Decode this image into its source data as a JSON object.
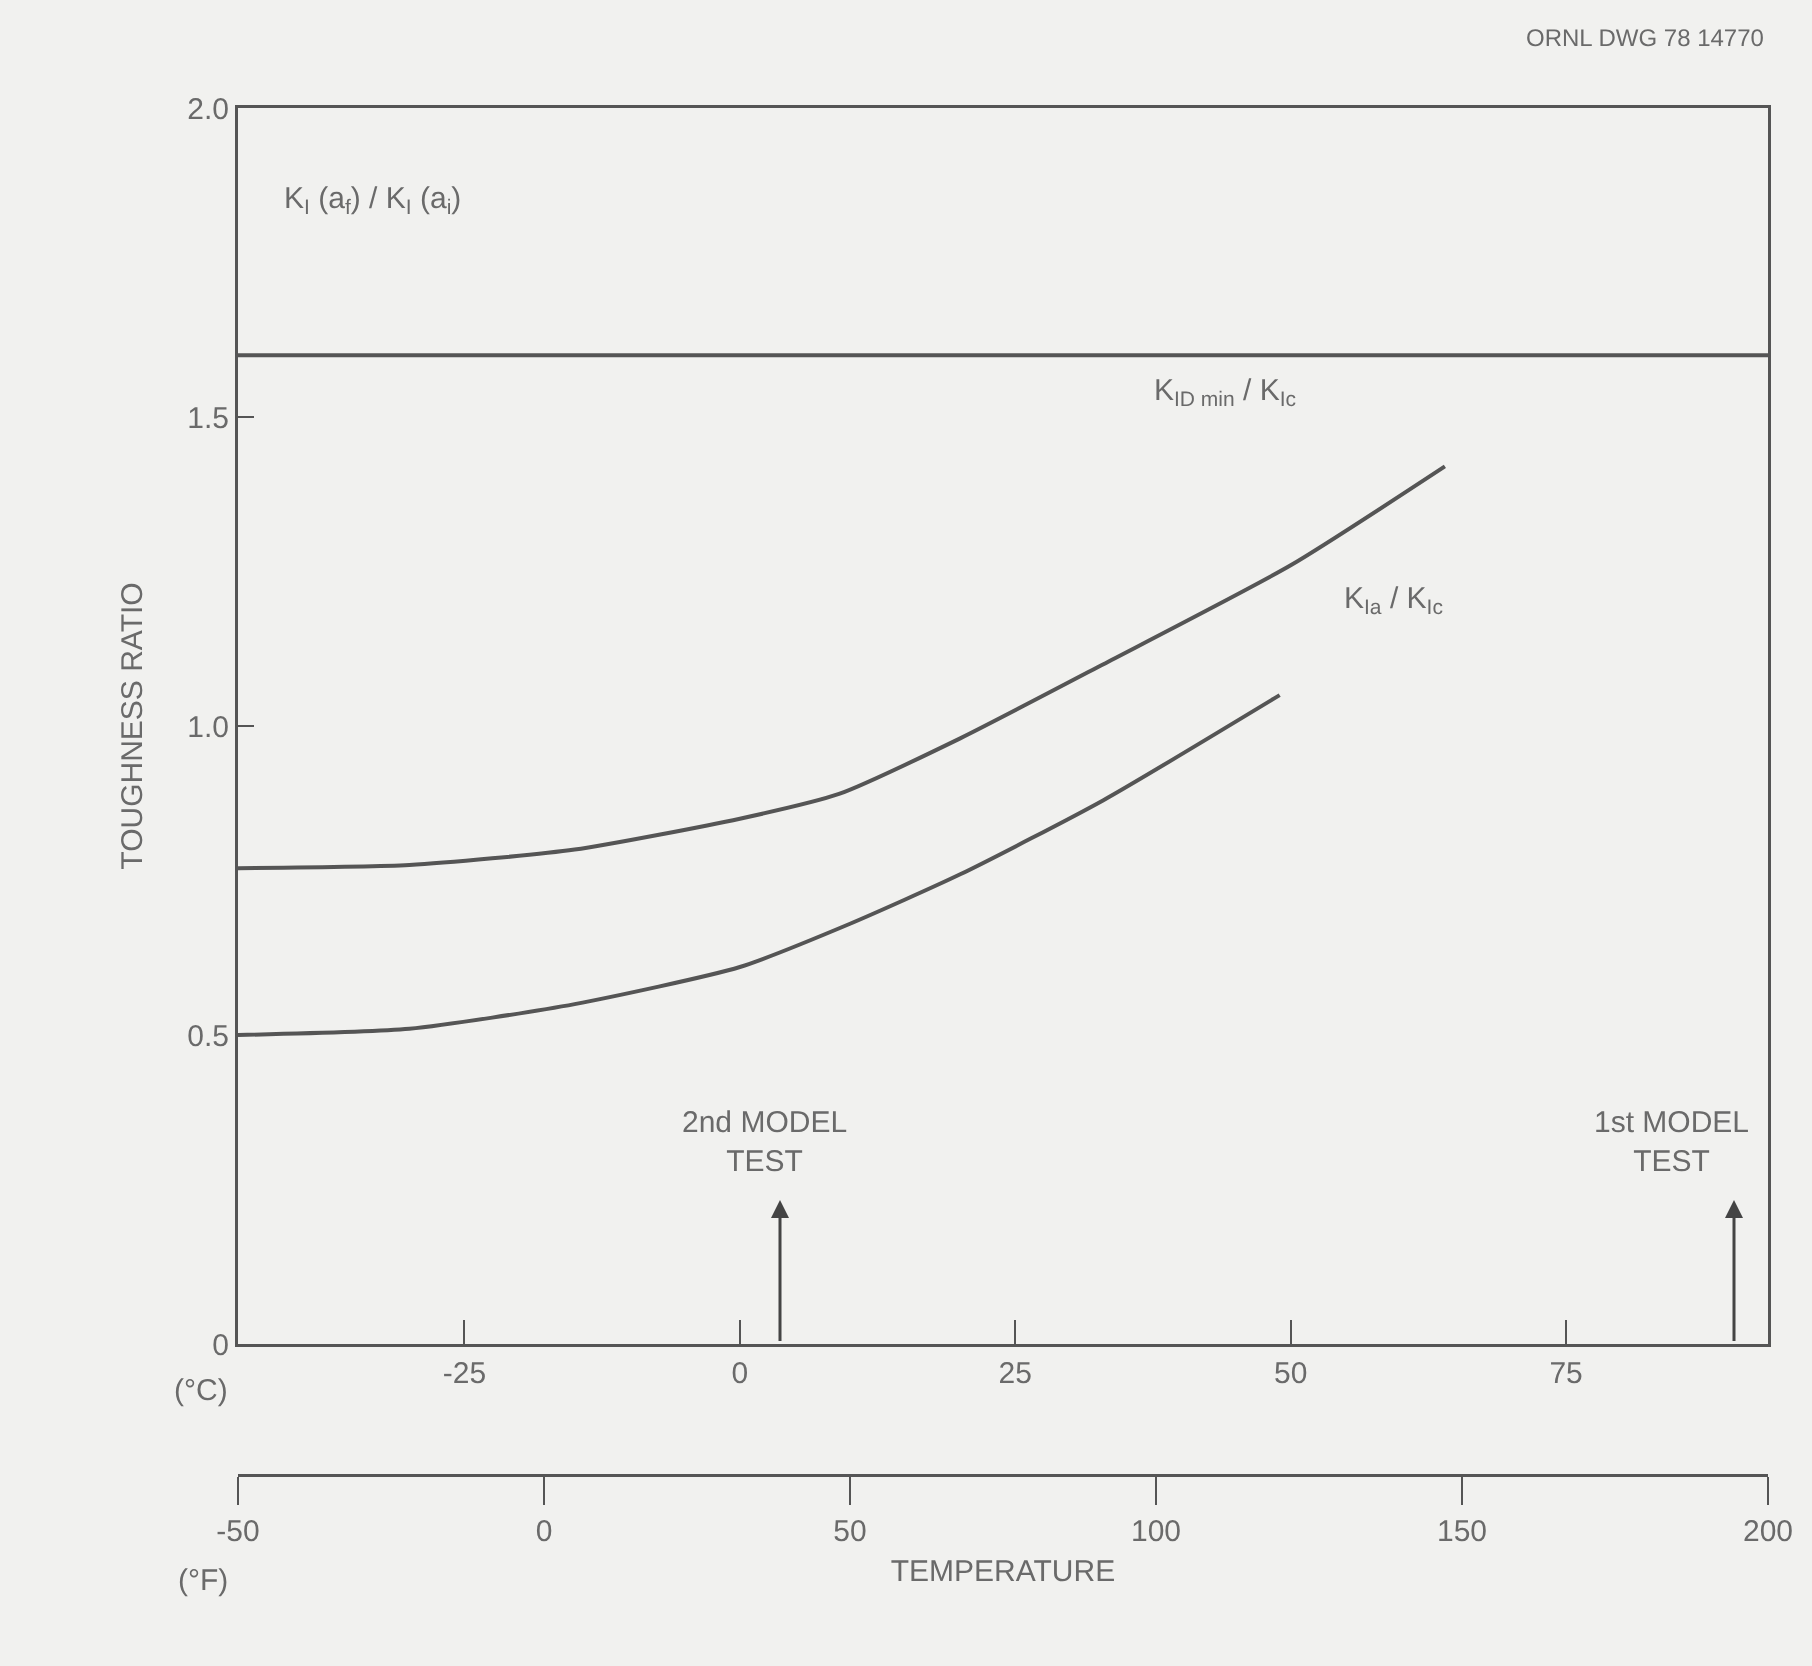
{
  "chart_data": {
    "type": "line",
    "ylabel": "TOUGHNESS RATIO",
    "xlabel": "TEMPERATURE",
    "xlim": [
      -45.56,
      93.33
    ],
    "xticks": [
      -25,
      0,
      25,
      50,
      75
    ],
    "x2lim": [
      -50,
      200
    ],
    "x2ticks": [
      -50,
      0,
      50,
      100,
      150,
      200
    ],
    "ylim": [
      0,
      2
    ],
    "yticks": [
      0,
      {
        "value": 0.5,
        "label": "0.5"
      },
      {
        "value": 1,
        "label": "1.0"
      },
      {
        "value": 1.5,
        "label": "1.5"
      },
      {
        "value": 2,
        "label": "2.0"
      }
    ],
    "grid": false,
    "line_style": "solid",
    "series": [
      {
        "color": "#555555",
        "x": [
          -45.56,
          93.33
        ],
        "values": [
          1.6,
          1.6
        ]
      },
      {
        "color": "#555555",
        "x": [
          -45.56,
          -30,
          -15,
          0,
          9,
          20,
          33,
          50,
          64
        ],
        "values": [
          0.77,
          0.775,
          0.8,
          0.85,
          0.89,
          0.98,
          1.1,
          1.26,
          1.42
        ]
      },
      {
        "color": "#555555",
        "x": [
          -45.56,
          -30,
          -15,
          0,
          10,
          20,
          33,
          49
        ],
        "values": [
          0.5,
          0.51,
          0.55,
          0.61,
          0.68,
          0.76,
          0.88,
          1.05
        ]
      }
    ],
    "annotations": [
      "ORNL DWG 78 14770",
      "(°C)",
      "(°F)",
      "K$_{I}$ (a$_{f}$) / K$_{I}$ (a$_{i}$)",
      "K$_{ID min}$ / K$_{Ic}$",
      "K$_{Ia}$ / K$_{Ic}$",
      "2nd MODEL\nTEST",
      "1st MODEL\nTEST"
    ]
  }
}
